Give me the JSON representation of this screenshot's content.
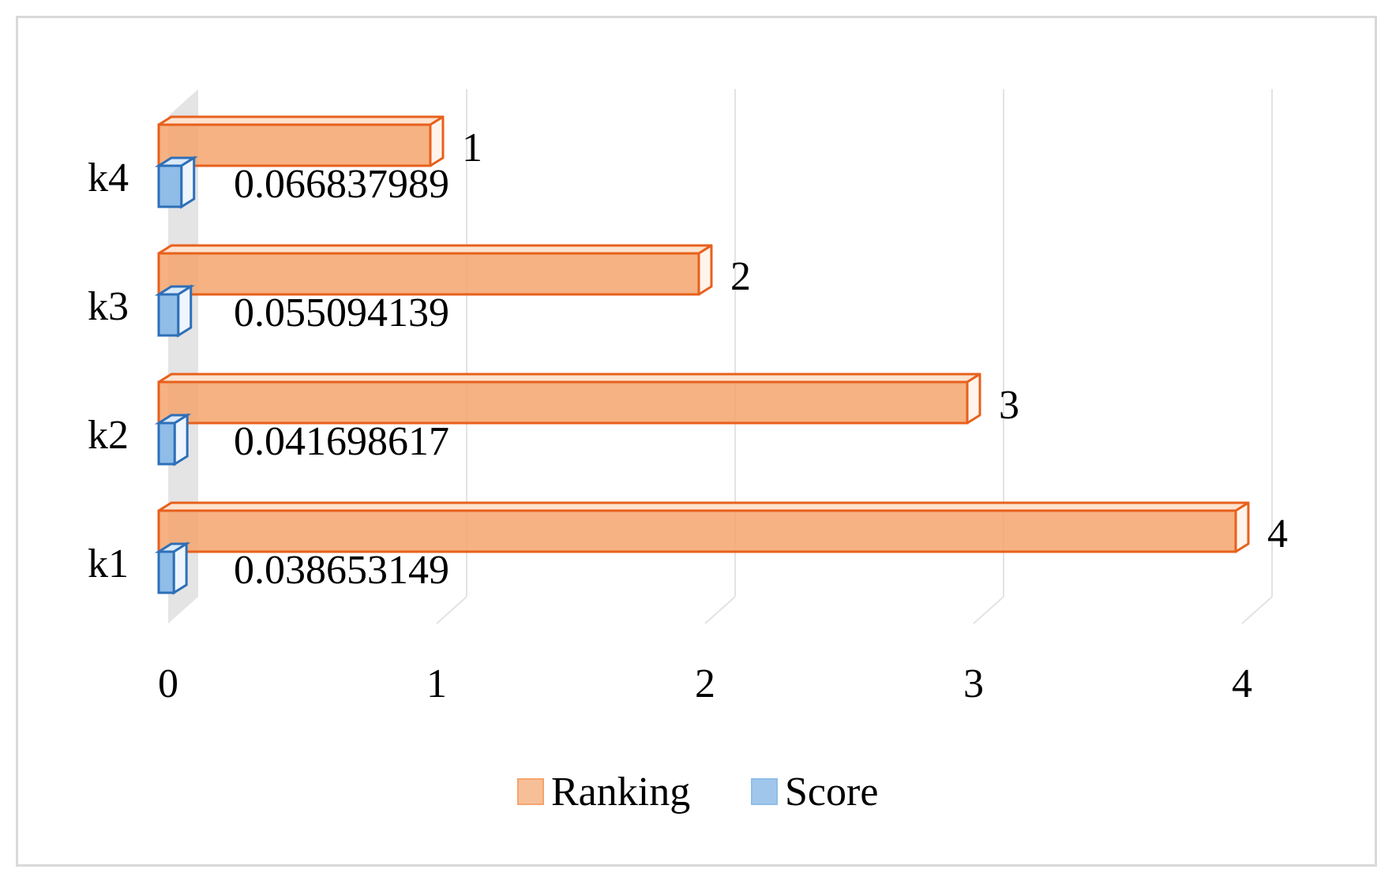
{
  "chart_data": {
    "type": "bar",
    "orientation": "horizontal",
    "style": "3d",
    "categories": [
      "k1",
      "k2",
      "k3",
      "k4"
    ],
    "series": [
      {
        "name": "Ranking",
        "values": [
          4,
          3,
          2,
          1
        ],
        "labels": [
          "4",
          "3",
          "2",
          "1"
        ],
        "color": "#f4a46c",
        "edge_color": "#e8601c"
      },
      {
        "name": "Score",
        "values": [
          0.038653149,
          0.041698617,
          0.055094139,
          0.066837989
        ],
        "labels": [
          "0.038653149",
          "0.041698617",
          "0.055094139",
          "0.066837989"
        ],
        "color": "#8fbde8",
        "edge_color": "#2e6fb8"
      }
    ],
    "xlim": [
      0,
      4
    ],
    "xticks": [
      "0",
      "1",
      "2",
      "3",
      "4"
    ],
    "grid": true,
    "legend": "bottom",
    "title": "",
    "xlabel": "",
    "ylabel": ""
  }
}
